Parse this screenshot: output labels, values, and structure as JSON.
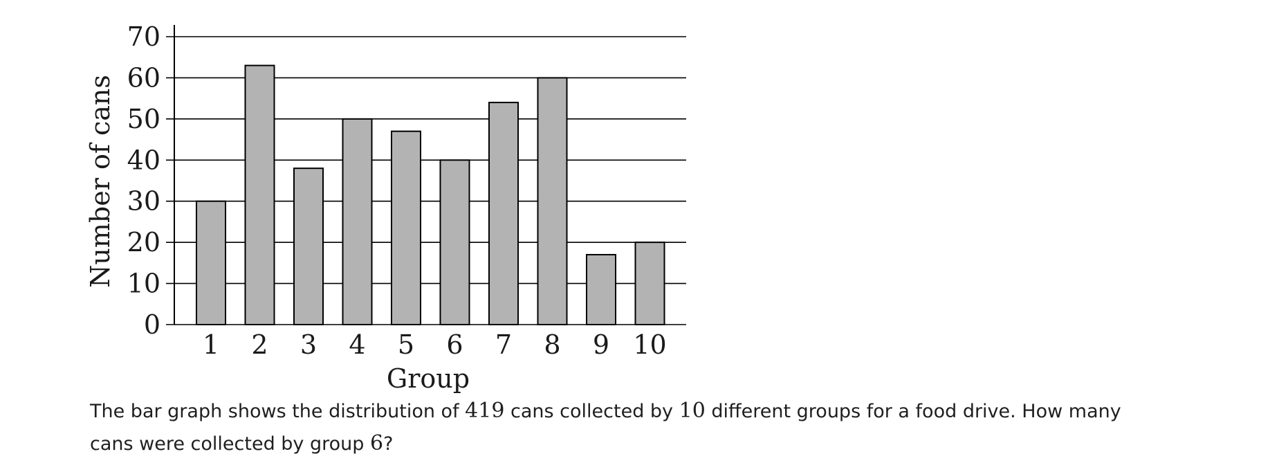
{
  "chart_data": {
    "type": "bar",
    "categories": [
      "1",
      "2",
      "3",
      "4",
      "5",
      "6",
      "7",
      "8",
      "9",
      "10"
    ],
    "values": [
      30,
      63,
      38,
      50,
      47,
      40,
      54,
      60,
      17,
      20
    ],
    "xlabel": "Group",
    "ylabel": "Number of cans",
    "ylim": [
      0,
      70
    ],
    "yticks": [
      "0",
      "10",
      "20",
      "30",
      "40",
      "50",
      "60",
      "70"
    ],
    "grid": true,
    "bar_color": "#b3b3b3",
    "edge_color": "#000000"
  },
  "question": {
    "part1": "The bar graph shows the distribution of ",
    "total": "419",
    "part2": " cans collected by ",
    "groups": "10",
    "part3": " different groups for a food drive. How many cans were collected by group ",
    "group": "6",
    "part4": "?"
  }
}
